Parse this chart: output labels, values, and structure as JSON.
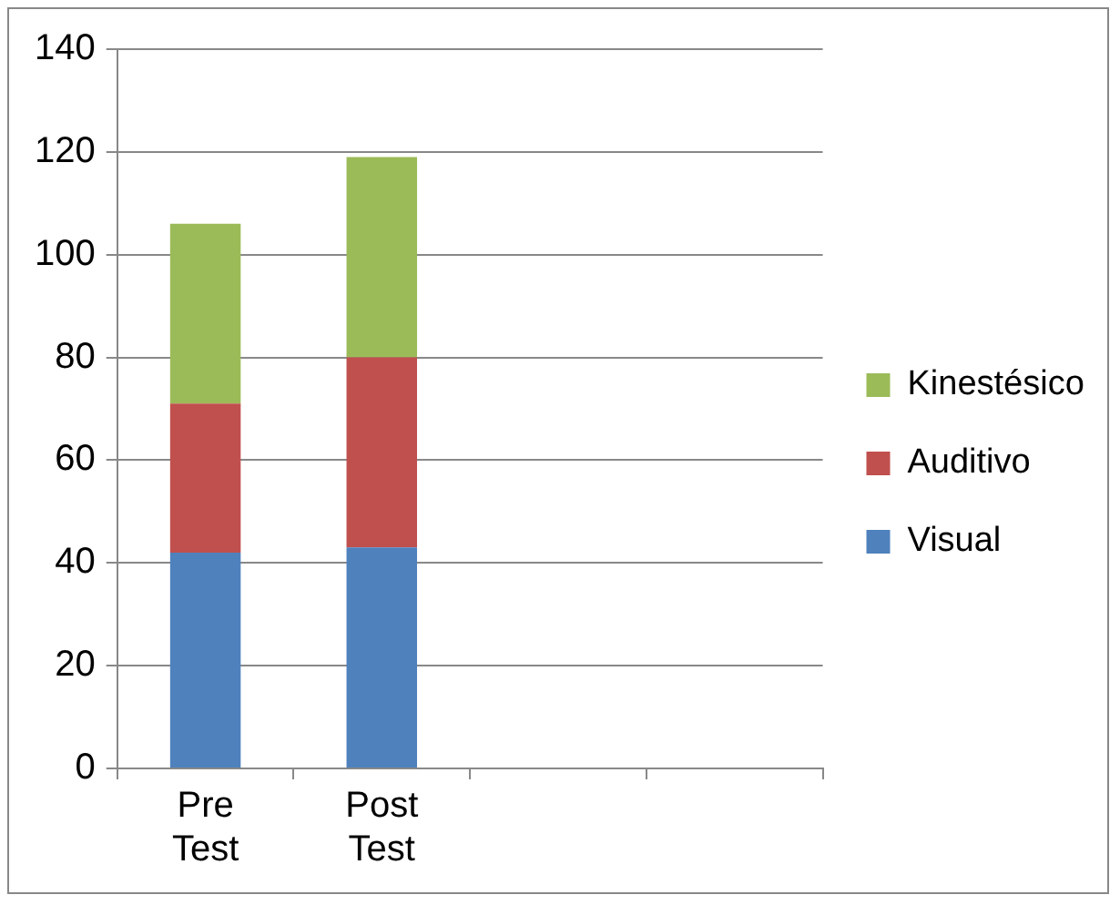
{
  "chart_data": {
    "type": "bar",
    "stacked": true,
    "categories": [
      "Pre Test",
      "Post Test",
      null,
      null
    ],
    "series": [
      {
        "name": "Visual",
        "color": "#4f81bd",
        "values": [
          42,
          43,
          null,
          null
        ]
      },
      {
        "name": "Auditivo",
        "color": "#c0504d",
        "values": [
          29,
          37,
          null,
          null
        ]
      },
      {
        "name": "Kinestésico",
        "color": "#9bbb59",
        "values": [
          35,
          39,
          null,
          null
        ]
      }
    ],
    "ylim": [
      0,
      140
    ],
    "yticks": [
      0,
      20,
      40,
      60,
      80,
      100,
      120,
      140
    ],
    "grid": "y",
    "legend": "right"
  }
}
